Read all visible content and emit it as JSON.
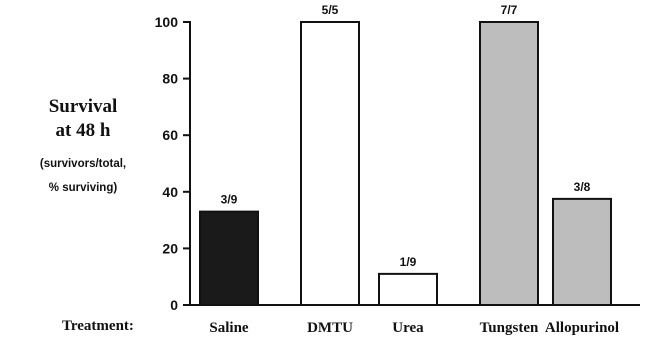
{
  "chart_data": {
    "type": "bar",
    "title": "",
    "ylabel_lines": [
      "Survival",
      "at 48 h"
    ],
    "ylabel_sub_lines": [
      "(survivors/total,",
      "% surviving)"
    ],
    "xlabel": "Treatment:",
    "categories": [
      "Saline",
      "DMTU",
      "Urea",
      "Tungsten",
      "Allopurinol"
    ],
    "values": [
      33,
      100,
      11,
      100,
      37.5
    ],
    "bar_labels": [
      "3/9",
      "5/5",
      "1/9",
      "7/7",
      "3/8"
    ],
    "bar_fills": [
      "#1a1a1a",
      "#ffffff",
      "#ffffff",
      "#bdbdbd",
      "#bdbdbd"
    ],
    "ylim": [
      0,
      100
    ],
    "yticks": [
      0,
      20,
      40,
      60,
      80,
      100
    ],
    "grid": false,
    "legend": "none"
  }
}
